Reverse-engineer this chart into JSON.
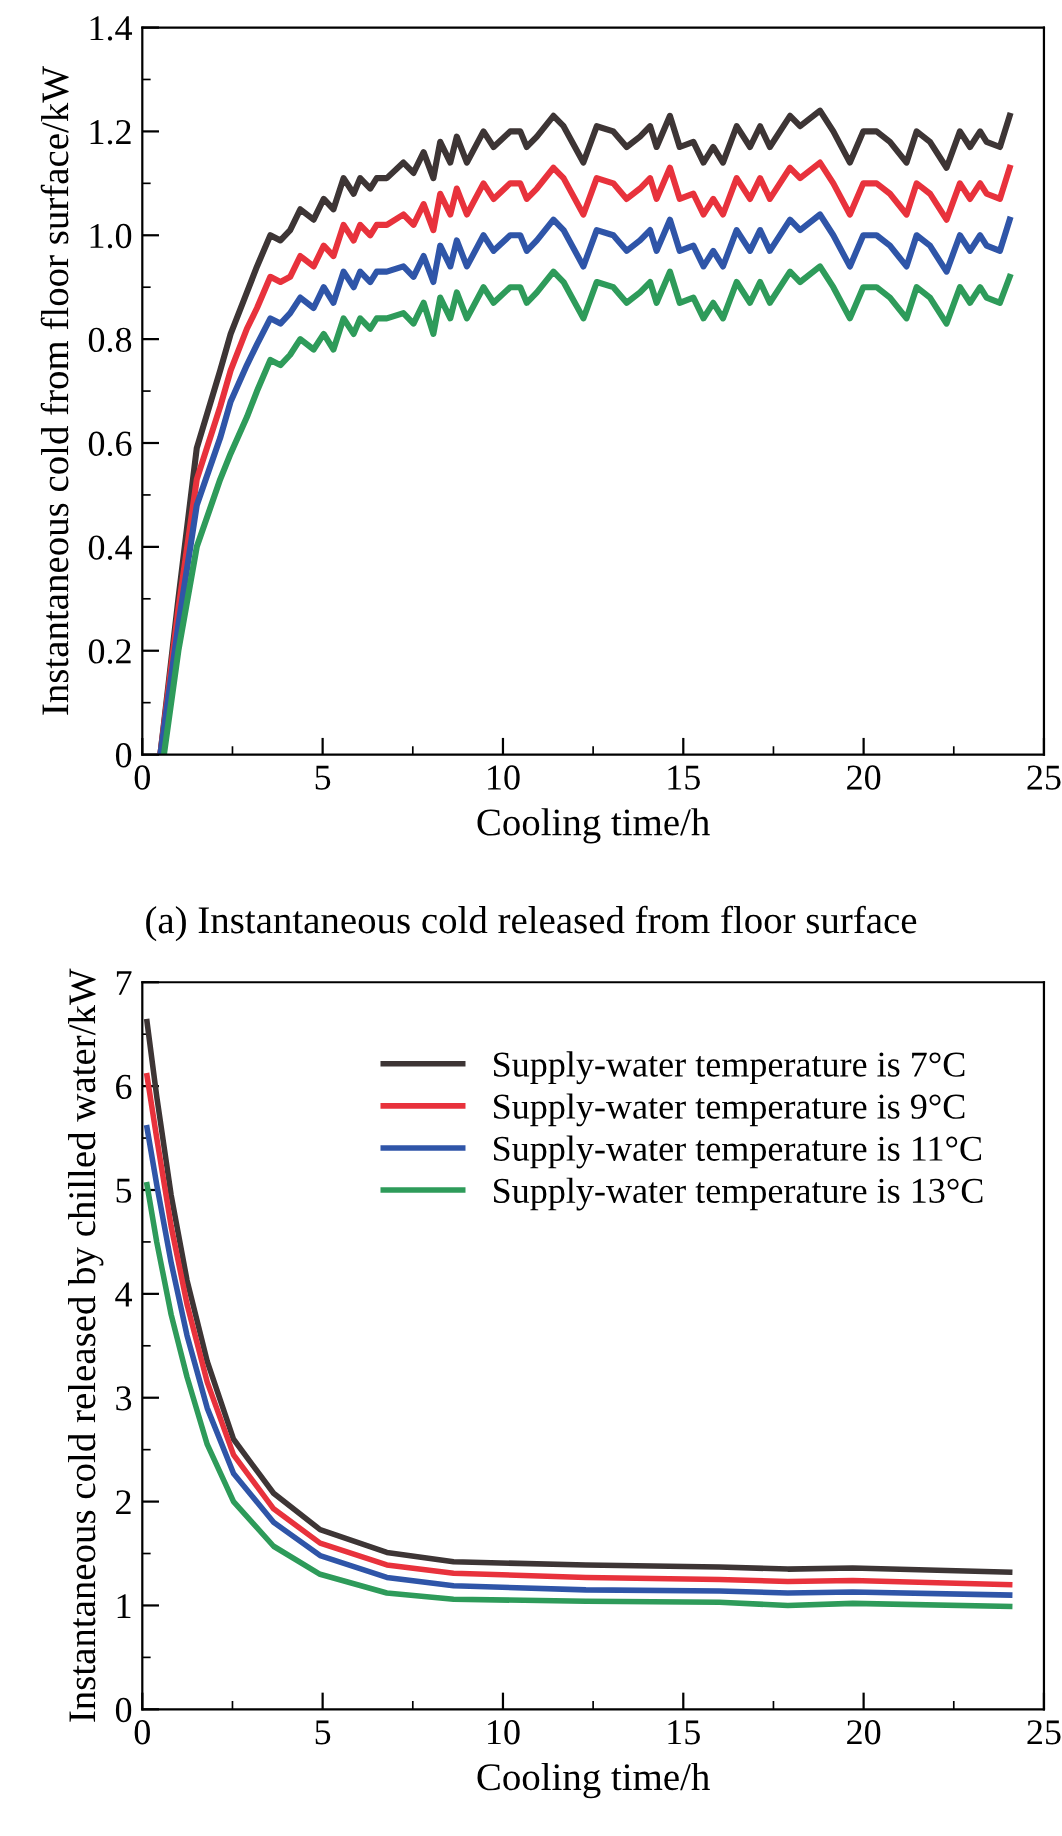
{
  "chart_data": [
    {
      "type": "line",
      "xlabel": "Cooling time/h",
      "ylabel": "Instantaneous cold from floor surface/kW",
      "annotations": [
        "(a) Instantaneous cold released from floor surface"
      ],
      "x": [
        0.5,
        1.0,
        1.51,
        2.16,
        2.45,
        2.9,
        3.18,
        3.55,
        3.83,
        4.1,
        4.38,
        4.75,
        5.03,
        5.3,
        5.58,
        5.86,
        6.04,
        6.32,
        6.5,
        6.78,
        7.24,
        7.52,
        7.8,
        8.07,
        8.26,
        8.54,
        8.72,
        9.0,
        9.46,
        9.74,
        10.2,
        10.48,
        10.66,
        10.94,
        11.4,
        11.68,
        12.23,
        12.6,
        13.06,
        13.43,
        13.8,
        14.08,
        14.26,
        14.63,
        14.9,
        15.28,
        15.56,
        15.83,
        16.1,
        16.48,
        16.85,
        17.13,
        17.4,
        17.96,
        18.24,
        18.79,
        19.16,
        19.62,
        19.99,
        20.36,
        20.73,
        21.19,
        21.47,
        21.84,
        22.3,
        22.67,
        22.95,
        23.23,
        23.41,
        23.78,
        24.05
      ],
      "series": [
        {
          "color": "#3d3535",
          "values": [
            0,
            0.3,
            0.59,
            0.74,
            0.81,
            0.89,
            0.94,
            1.0,
            0.99,
            1.01,
            1.05,
            1.03,
            1.07,
            1.05,
            1.11,
            1.08,
            1.11,
            1.09,
            1.11,
            1.11,
            1.14,
            1.12,
            1.16,
            1.11,
            1.18,
            1.14,
            1.19,
            1.14,
            1.2,
            1.17,
            1.2,
            1.2,
            1.17,
            1.19,
            1.23,
            1.21,
            1.14,
            1.21,
            1.2,
            1.17,
            1.19,
            1.21,
            1.17,
            1.23,
            1.17,
            1.18,
            1.14,
            1.17,
            1.14,
            1.21,
            1.17,
            1.21,
            1.17,
            1.23,
            1.21,
            1.24,
            1.2,
            1.14,
            1.2,
            1.2,
            1.18,
            1.14,
            1.2,
            1.18,
            1.13,
            1.2,
            1.17,
            1.2,
            1.18,
            1.17,
            1.23
          ]
        },
        {
          "color": "#e8323c",
          "values": [
            0,
            0.28,
            0.53,
            0.67,
            0.74,
            0.82,
            0.86,
            0.92,
            0.91,
            0.92,
            0.96,
            0.94,
            0.98,
            0.96,
            1.02,
            0.99,
            1.02,
            1.0,
            1.02,
            1.02,
            1.04,
            1.02,
            1.06,
            1.01,
            1.08,
            1.04,
            1.09,
            1.04,
            1.1,
            1.07,
            1.1,
            1.1,
            1.07,
            1.09,
            1.13,
            1.11,
            1.04,
            1.11,
            1.1,
            1.07,
            1.09,
            1.11,
            1.07,
            1.13,
            1.07,
            1.08,
            1.04,
            1.07,
            1.04,
            1.11,
            1.07,
            1.11,
            1.07,
            1.13,
            1.11,
            1.14,
            1.1,
            1.04,
            1.1,
            1.1,
            1.08,
            1.04,
            1.1,
            1.08,
            1.03,
            1.1,
            1.07,
            1.1,
            1.08,
            1.07,
            1.13
          ]
        },
        {
          "color": "#2f55a8",
          "values": [
            0,
            0.25,
            0.48,
            0.61,
            0.68,
            0.75,
            0.79,
            0.84,
            0.83,
            0.85,
            0.88,
            0.86,
            0.9,
            0.87,
            0.93,
            0.9,
            0.93,
            0.91,
            0.93,
            0.93,
            0.94,
            0.92,
            0.96,
            0.91,
            0.98,
            0.94,
            0.99,
            0.94,
            1.0,
            0.97,
            1.0,
            1.0,
            0.97,
            0.99,
            1.03,
            1.01,
            0.94,
            1.01,
            1.0,
            0.97,
            0.99,
            1.01,
            0.97,
            1.03,
            0.97,
            0.98,
            0.94,
            0.97,
            0.94,
            1.01,
            0.97,
            1.01,
            0.97,
            1.03,
            1.01,
            1.04,
            1.0,
            0.94,
            1.0,
            1.0,
            0.98,
            0.94,
            1.0,
            0.98,
            0.93,
            1.0,
            0.97,
            1.0,
            0.98,
            0.97,
            1.03
          ]
        },
        {
          "color": "#2e9b5a",
          "x": [
            0.6,
            1.0,
            1.51,
            2.16,
            2.45,
            2.9,
            3.18,
            3.55,
            3.83,
            4.1,
            4.38,
            4.75,
            5.03,
            5.3,
            5.58,
            5.86,
            6.04,
            6.32,
            6.5,
            6.78,
            7.24,
            7.52,
            7.8,
            8.07,
            8.26,
            8.54,
            8.72,
            9.0,
            9.46,
            9.74,
            10.2,
            10.48,
            10.66,
            10.94,
            11.4,
            11.68,
            12.23,
            12.6,
            13.06,
            13.43,
            13.8,
            14.08,
            14.26,
            14.63,
            14.9,
            15.28,
            15.56,
            15.83,
            16.1,
            16.48,
            16.85,
            17.13,
            17.4,
            17.96,
            18.24,
            18.79,
            19.16,
            19.62,
            19.99,
            20.36,
            20.73,
            21.19,
            21.47,
            21.84,
            22.3,
            22.67,
            22.95,
            23.23,
            23.41,
            23.78,
            24.05
          ],
          "values": [
            0,
            0.2,
            0.4,
            0.53,
            0.58,
            0.65,
            0.7,
            0.76,
            0.75,
            0.77,
            0.8,
            0.78,
            0.81,
            0.78,
            0.84,
            0.81,
            0.84,
            0.82,
            0.84,
            0.84,
            0.85,
            0.83,
            0.87,
            0.81,
            0.88,
            0.84,
            0.89,
            0.84,
            0.9,
            0.87,
            0.9,
            0.9,
            0.87,
            0.89,
            0.93,
            0.91,
            0.84,
            0.91,
            0.9,
            0.87,
            0.89,
            0.91,
            0.87,
            0.93,
            0.87,
            0.88,
            0.84,
            0.87,
            0.84,
            0.91,
            0.87,
            0.91,
            0.87,
            0.93,
            0.91,
            0.94,
            0.9,
            0.84,
            0.9,
            0.9,
            0.88,
            0.84,
            0.9,
            0.88,
            0.83,
            0.9,
            0.87,
            0.9,
            0.88,
            0.87,
            0.92
          ]
        }
      ],
      "xlim": [
        0,
        25
      ],
      "xticks": [
        0,
        5,
        10,
        15,
        20,
        25
      ],
      "ylim": [
        0,
        1.4
      ],
      "yticks": [
        0,
        0.2,
        0.4,
        0.6,
        0.8,
        {
          "value": 1,
          "label": "1.0"
        },
        1.2,
        1.4
      ],
      "grid": false,
      "legend": false,
      "line_style": "solid",
      "marker": "none"
    },
    {
      "type": "line",
      "xlabel": "Cooling time/h",
      "ylabel": "Instantaneous cold released by chilled water/kW",
      "x": [
        0.13,
        0.4,
        0.8,
        1.24,
        1.8,
        2.53,
        3.64,
        4.93,
        6.78,
        8.63,
        12.3,
        16.0,
        17.9,
        19.7,
        24.05
      ],
      "series": [
        {
          "name": "Supply-water temperature is 7°C",
          "color": "#3d3535",
          "values": [
            6.62,
            5.9,
            4.95,
            4.13,
            3.35,
            2.6,
            2.08,
            1.73,
            1.51,
            1.42,
            1.39,
            1.37,
            1.35,
            1.36,
            1.32
          ]
        },
        {
          "name": "Supply-water temperature is 9°C",
          "color": "#e8323c",
          "values": [
            6.1,
            5.5,
            4.65,
            3.9,
            3.15,
            2.45,
            1.93,
            1.6,
            1.39,
            1.31,
            1.27,
            1.25,
            1.23,
            1.24,
            1.2
          ]
        },
        {
          "name": "Supply-water temperature is 11°C",
          "color": "#2f55a8",
          "values": [
            5.6,
            5.05,
            4.3,
            3.6,
            2.9,
            2.27,
            1.8,
            1.48,
            1.27,
            1.19,
            1.15,
            1.14,
            1.12,
            1.13,
            1.1
          ]
        },
        {
          "name": "Supply-water temperature is 13°C",
          "color": "#2e9b5a",
          "values": [
            5.05,
            4.5,
            3.8,
            3.2,
            2.55,
            2.0,
            1.57,
            1.3,
            1.12,
            1.06,
            1.04,
            1.03,
            1.0,
            1.02,
            0.99
          ]
        }
      ],
      "xlim": [
        0,
        25
      ],
      "xticks": [
        0,
        5,
        10,
        15,
        20,
        25
      ],
      "ylim": [
        0,
        7
      ],
      "yticks": [
        0,
        1,
        2,
        3,
        4,
        5,
        6,
        7
      ],
      "grid": false,
      "legend": "top right",
      "line_style": "solid",
      "marker": "none"
    }
  ]
}
